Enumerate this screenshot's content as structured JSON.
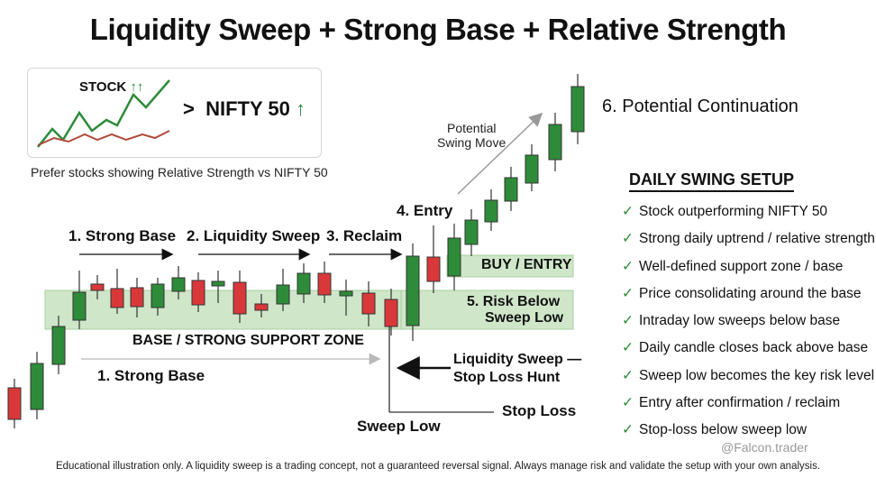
{
  "title": "Liquidity Sweep + Strong Base + Relative Strength",
  "inset": {
    "stock_label": "STOCK",
    "stock_arrows": "↑↑",
    "comparator": ">",
    "index_label": "NIFTY 50",
    "index_arrow": "↑",
    "caption": "Prefer stocks showing Relative Strength vs NIFTY 50",
    "stock_color": "#2e8b3a",
    "index_color": "#b04a3a"
  },
  "labels": {
    "step1": "1. Strong Base",
    "step2": "2. Liquidity Sweep",
    "step3": "3. Reclaim",
    "step4": "4. Entry",
    "step5": [
      "5. Risk Below",
      "Sweep Low"
    ],
    "step6": "6. Potential Continuation",
    "potential_swing": [
      "Potential",
      "Swing Move"
    ],
    "buy_entry": "BUY / ENTRY",
    "base_zone": "BASE / STRONG SUPPORT ZONE",
    "strong_base_lower": "1. Strong Base",
    "liquidity_sweep_hunt": [
      "Liquidity Sweep —",
      "Stop Loss Hunt"
    ],
    "stop_loss": "Stop Loss",
    "sweep_low": "Sweep Low"
  },
  "setup": {
    "title": "DAILY SWING SETUP",
    "check_icon": "✓",
    "items": [
      "Stock outperforming NIFTY 50",
      "Strong daily uptrend / relative strength",
      "Well-defined support zone / base",
      "Price consolidating around the base",
      "Intraday low sweeps below base",
      "Daily candle closes back above base",
      "Sweep low becomes the key risk level",
      "Entry after confirmation / reclaim",
      "Stop-loss below sweep low"
    ]
  },
  "colors": {
    "bull": "#2e8b3a",
    "bear": "#d9383a",
    "zone": "#cfe6c9",
    "zone_border": "#a9cfa0"
  },
  "footer": "Educational illustration only. A liquidity sweep is a trading concept, not a guaranteed reversal signal. Always manage risk and validate the setup with your own analysis.",
  "watermark": "@Falcon.trader"
}
